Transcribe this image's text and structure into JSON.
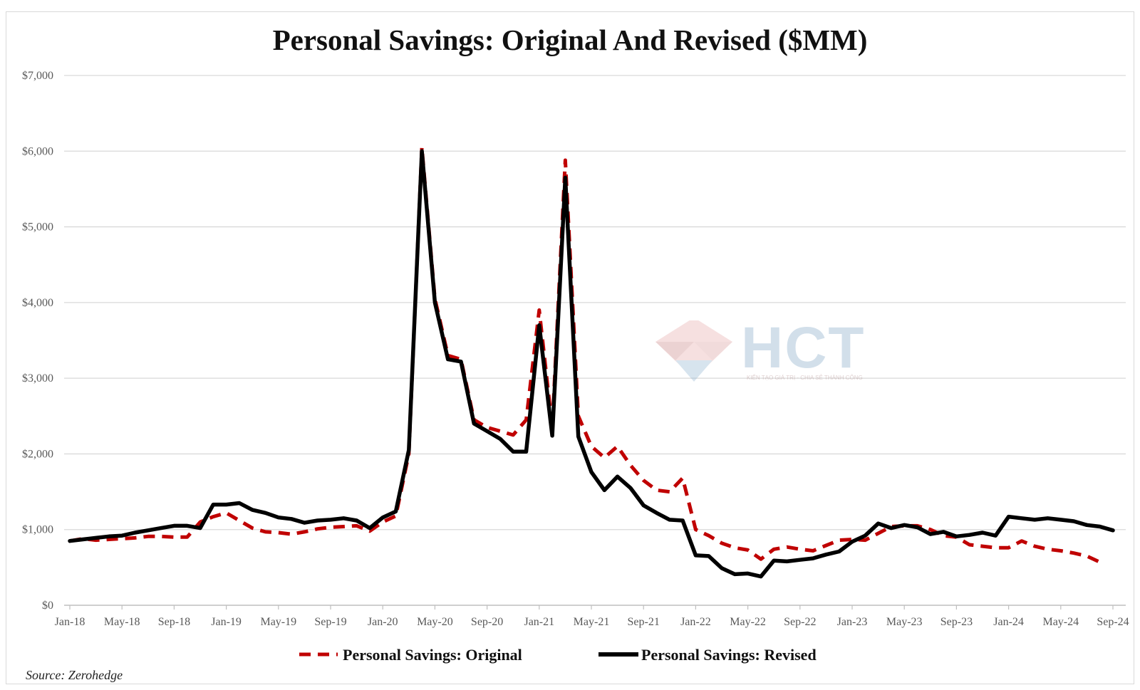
{
  "watermark": {
    "text": "HCT",
    "tagline": "KIẾN TẠO GIÁ TRỊ - CHIA SẺ THÀNH CÔNG"
  },
  "source": "Source: Zerohedge",
  "chart_data": {
    "type": "line",
    "title": "Personal Savings: Original And Revised ($MM)",
    "xlabel": "",
    "ylabel": "",
    "ylim": [
      0,
      7000
    ],
    "grid": true,
    "legend_position": "bottom-center",
    "yticks": [
      0,
      1000,
      2000,
      3000,
      4000,
      5000,
      6000,
      7000
    ],
    "ytick_labels": [
      "$0",
      "$1,000",
      "$2,000",
      "$3,000",
      "$4,000",
      "$5,000",
      "$6,000",
      "$7,000"
    ],
    "xtick_labels": [
      "Jan-18",
      "May-18",
      "Sep-18",
      "Jan-19",
      "May-19",
      "Sep-19",
      "Jan-20",
      "May-20",
      "Sep-20",
      "Jan-21",
      "May-21",
      "Sep-21",
      "Jan-22",
      "May-22",
      "Sep-22",
      "Jan-23",
      "May-23",
      "Sep-23",
      "Jan-24",
      "May-24",
      "Sep-24"
    ],
    "xtick_index": [
      0,
      4,
      8,
      12,
      16,
      20,
      24,
      28,
      32,
      36,
      40,
      44,
      48,
      52,
      56,
      60,
      64,
      68,
      72,
      76,
      80
    ],
    "x_count": 81,
    "series": [
      {
        "name": "Personal Savings: Original",
        "color": "#c00000",
        "dash": true,
        "values": [
          850,
          880,
          860,
          870,
          880,
          890,
          910,
          910,
          900,
          900,
          1100,
          1170,
          1220,
          1120,
          1020,
          970,
          960,
          940,
          970,
          1010,
          1030,
          1040,
          1050,
          980,
          1100,
          1180,
          2000,
          6050,
          4050,
          3300,
          3250,
          2450,
          2350,
          2300,
          2250,
          2450,
          3900,
          2350,
          5880,
          2500,
          2100,
          1950,
          2100,
          1850,
          1650,
          1520,
          1500,
          1680,
          1000,
          920,
          820,
          760,
          730,
          610,
          740,
          770,
          740,
          720,
          790,
          860,
          870,
          860,
          950,
          1040,
          1050,
          1050,
          1000,
          920,
          900,
          800,
          780,
          760,
          760,
          850,
          780,
          740,
          720,
          690,
          650,
          570,
          null
        ]
      },
      {
        "name": "Personal Savings: Revised",
        "color": "#000000",
        "dash": false,
        "values": [
          850,
          870,
          890,
          910,
          920,
          960,
          990,
          1020,
          1050,
          1050,
          1020,
          1330,
          1330,
          1350,
          1260,
          1220,
          1160,
          1140,
          1090,
          1120,
          1130,
          1150,
          1120,
          1020,
          1160,
          1240,
          2050,
          6000,
          4000,
          3250,
          3220,
          2400,
          2300,
          2200,
          2030,
          2030,
          3700,
          2240,
          5650,
          2230,
          1760,
          1520,
          1700,
          1550,
          1320,
          1220,
          1130,
          1120,
          660,
          650,
          490,
          410,
          420,
          380,
          590,
          580,
          600,
          620,
          670,
          710,
          840,
          920,
          1080,
          1020,
          1060,
          1030,
          940,
          970,
          910,
          930,
          960,
          920,
          1170,
          1150,
          1130,
          1150,
          1130,
          1110,
          1060,
          1040,
          990
        ]
      }
    ]
  }
}
